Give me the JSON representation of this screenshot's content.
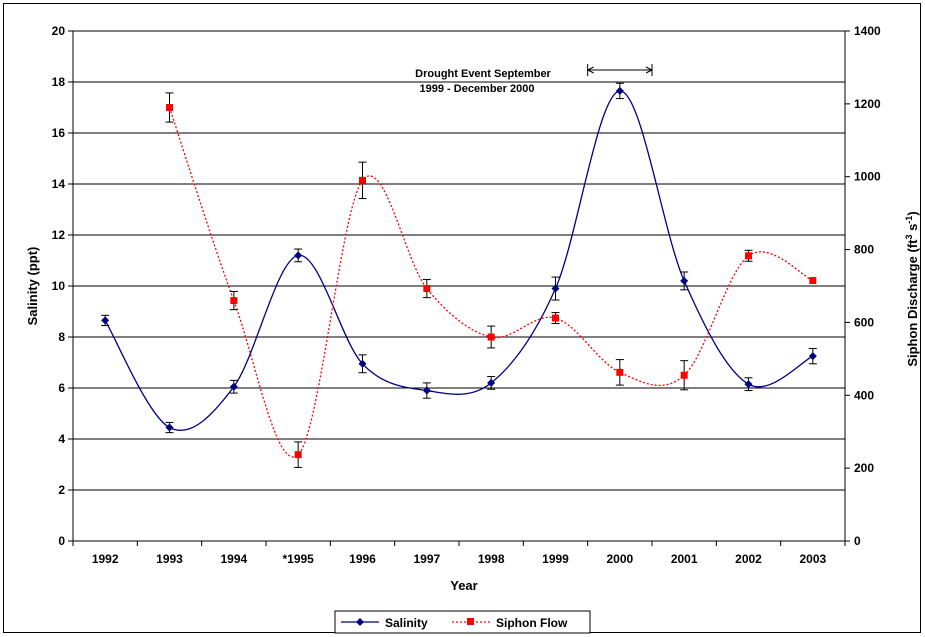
{
  "chart_data": {
    "type": "line",
    "title": "",
    "xlabel": "Year",
    "ylabel": "Salinity (ppt)",
    "y2label": {
      "prefix": "Siphon Discharge (ft",
      "sup1": "3",
      "mid": " s",
      "sup2": "-1",
      "suffix": ")"
    },
    "categories": [
      "1992",
      "1993",
      "1994",
      "*1995",
      "1996",
      "1997",
      "1998",
      "1999",
      "2000",
      "2001",
      "2002",
      "2003"
    ],
    "ylim": [
      0,
      20
    ],
    "yticks": [
      "0",
      "2",
      "4",
      "6",
      "8",
      "10",
      "12",
      "14",
      "16",
      "18",
      "20"
    ],
    "y2lim": [
      0,
      1400
    ],
    "y2ticks": [
      "0",
      "200",
      "400",
      "600",
      "800",
      "1000",
      "1200",
      "1400"
    ],
    "grid": true,
    "legend_placement": "bottom",
    "series": [
      {
        "name": "Salinity",
        "axis": "left",
        "color": "#000080",
        "marker": "diamond",
        "line": "solid",
        "values": [
          8.65,
          4.45,
          6.05,
          11.2,
          6.95,
          5.9,
          6.2,
          9.9,
          17.65,
          10.2,
          6.15,
          7.25
        ],
        "error": [
          0.2,
          0.2,
          0.25,
          0.25,
          0.35,
          0.3,
          0.25,
          0.45,
          0.3,
          0.35,
          0.25,
          0.3
        ]
      },
      {
        "name": "Siphon Flow",
        "axis": "right",
        "color": "#ff0000",
        "marker": "square",
        "line": "dotted",
        "values": [
          null,
          1190,
          660,
          237,
          990,
          693,
          560,
          612,
          463,
          455,
          783,
          715
        ],
        "error": [
          null,
          40,
          25,
          35,
          50,
          25,
          30,
          15,
          35,
          40,
          15,
          0
        ]
      }
    ],
    "annotation": {
      "lines": [
        "Drought Event September",
        "1999 - December 2000"
      ],
      "span": [
        "1999.5",
        "2000.5"
      ]
    }
  }
}
